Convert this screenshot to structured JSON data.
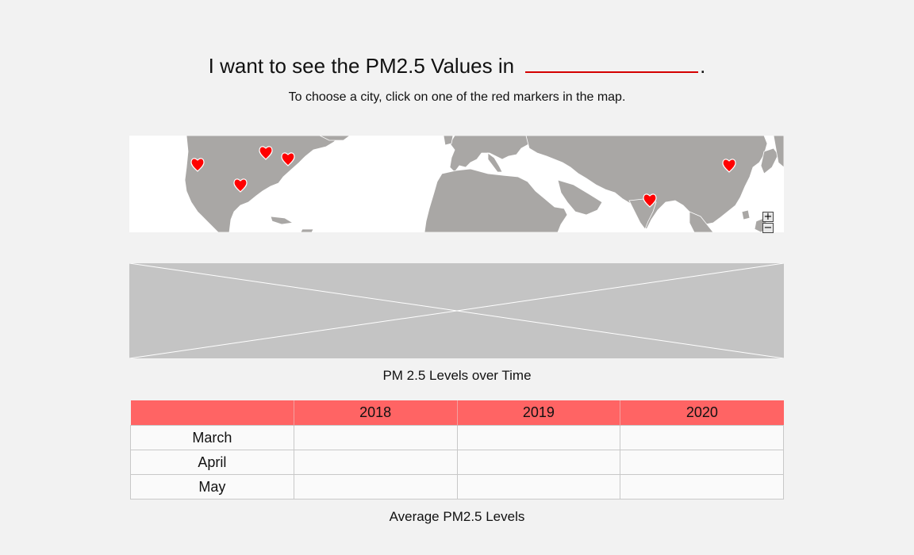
{
  "header": {
    "prompt_text": "I want to see the PM2.5 Values in",
    "city_value": "",
    "period": "."
  },
  "instructions": "To choose a city, click on one of the red markers in the map.",
  "map": {
    "land_color": "#a9a7a5",
    "water_color": "#ffffff",
    "marker_color": "#ff0000",
    "zoom_in_label": "+",
    "zoom_out_label": "−"
  },
  "chart": {
    "caption": "PM 2.5 Levels over Time"
  },
  "table": {
    "header_color": "#ff6464",
    "columns": [
      "",
      "2018",
      "2019",
      "2020"
    ],
    "rows": [
      {
        "month": "March",
        "values": [
          "",
          "",
          ""
        ]
      },
      {
        "month": "April",
        "values": [
          "",
          "",
          ""
        ]
      },
      {
        "month": "May",
        "values": [
          "",
          "",
          ""
        ]
      }
    ],
    "caption": "Average PM2.5 Levels"
  }
}
